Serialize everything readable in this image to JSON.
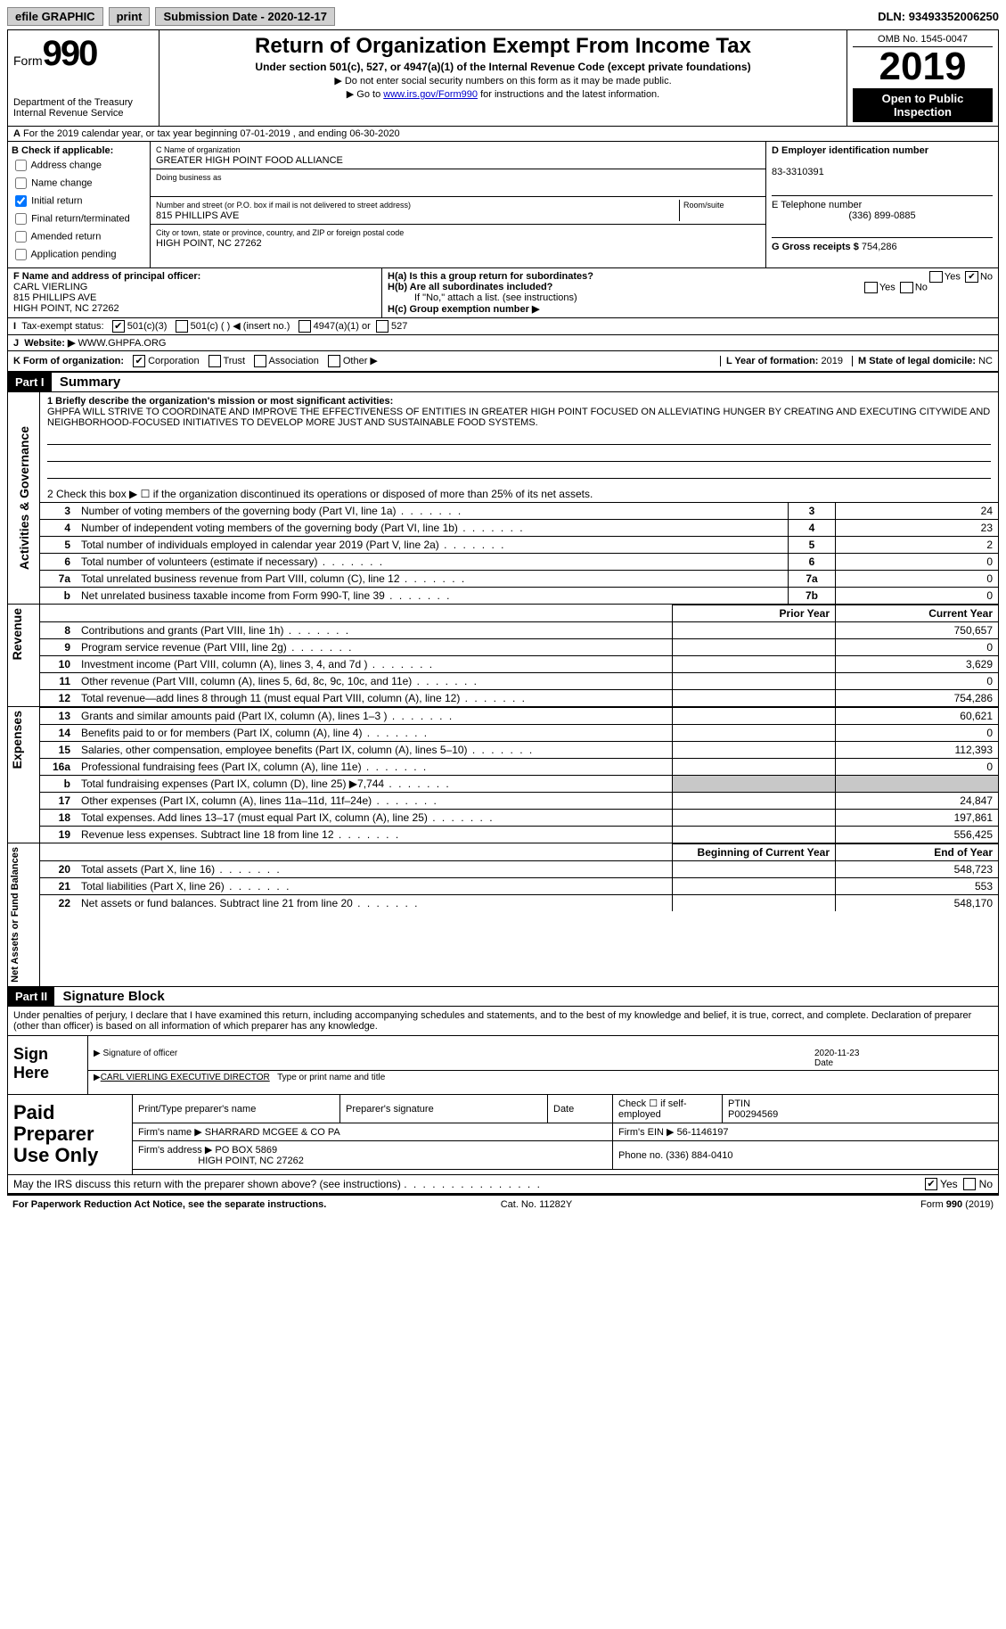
{
  "topbar": {
    "efile": "efile GRAPHIC",
    "print": "print",
    "subdate_label": "Submission Date - ",
    "subdate": "2020-12-17",
    "dln_label": "DLN: ",
    "dln": "93493352006250"
  },
  "header": {
    "form_prefix": "Form",
    "form_num": "990",
    "dept": "Department of the Treasury\nInternal Revenue Service",
    "title": "Return of Organization Exempt From Income Tax",
    "subtitle": "Under section 501(c), 527, or 4947(a)(1) of the Internal Revenue Code (except private foundations)",
    "hint1": "Do not enter social security numbers on this form as it may be made public.",
    "hint2_pre": "Go to ",
    "hint2_link": "www.irs.gov/Form990",
    "hint2_post": " for instructions and the latest information.",
    "omb": "OMB No. 1545-0047",
    "year": "2019",
    "openpub": "Open to Public Inspection"
  },
  "period": {
    "line": "For the 2019 calendar year, or tax year beginning 07-01-2019   , and ending 06-30-2020"
  },
  "boxB": {
    "label": "B Check if applicable:",
    "items": [
      "Address change",
      "Name change",
      "Initial return",
      "Final return/terminated",
      "Amended return",
      "Application pending"
    ],
    "checked": [
      false,
      false,
      true,
      false,
      false,
      false
    ]
  },
  "boxC": {
    "name_label": "C Name of organization",
    "name": "GREATER HIGH POINT FOOD ALLIANCE",
    "dba_label": "Doing business as",
    "dba": "",
    "addr_label": "Number and street (or P.O. box if mail is not delivered to street address)",
    "room_label": "Room/suite",
    "addr": "815 PHILLIPS AVE",
    "city_label": "City or town, state or province, country, and ZIP or foreign postal code",
    "city": "HIGH POINT, NC  27262"
  },
  "boxD": {
    "label": "D Employer identification number",
    "ein": "83-3310391",
    "tel_label": "E Telephone number",
    "tel": "(336) 899-0885",
    "gross_label": "G Gross receipts $",
    "gross": "754,286"
  },
  "boxF": {
    "label": "F Name and address of principal officer:",
    "name": "CARL VIERLING",
    "addr1": "815 PHILLIPS AVE",
    "addr2": "HIGH POINT, NC  27262"
  },
  "boxH": {
    "a_label": "H(a)  Is this a group return for subordinates?",
    "a_yes": false,
    "a_no": true,
    "b_label": "H(b)  Are all subordinates included?",
    "b_yes": false,
    "b_no": false,
    "b_hint": "If \"No,\" attach a list. (see instructions)",
    "c_label": "H(c)  Group exemption number ▶"
  },
  "taxexempt": {
    "label": "Tax-exempt status:",
    "c3": true,
    "c_other": "501(c) (  ) ◀ (insert no.)",
    "a4947": "4947(a)(1) or",
    "s527": "527"
  },
  "website": {
    "label": "Website: ▶",
    "val": "WWW.GHPFA.ORG"
  },
  "formorg": {
    "label": "K Form of organization:",
    "corp": true,
    "trust": false,
    "assoc": false,
    "other": false,
    "yr_label": "L Year of formation:",
    "yr": "2019",
    "dom_label": "M State of legal domicile:",
    "dom": "NC"
  },
  "part1": {
    "bar": "Part I",
    "title": "Summary",
    "q1_label": "1  Briefly describe the organization's mission or most significant activities:",
    "mission": "GHPFA WILL STRIVE TO COORDINATE AND IMPROVE THE EFFECTIVENESS OF ENTITIES IN GREATER HIGH POINT FOCUSED ON ALLEVIATING HUNGER BY CREATING AND EXECUTING CITYWIDE AND NEIGHBORHOOD-FOCUSED INITIATIVES TO DEVELOP MORE JUST AND SUSTAINABLE FOOD SYSTEMS.",
    "q2": "2   Check this box ▶ ☐  if the organization discontinued its operations or disposed of more than 25% of its net assets.",
    "rows_gov": [
      {
        "n": "3",
        "t": "Number of voting members of the governing body (Part VI, line 1a)",
        "box": "3",
        "cy": "24"
      },
      {
        "n": "4",
        "t": "Number of independent voting members of the governing body (Part VI, line 1b)",
        "box": "4",
        "cy": "23"
      },
      {
        "n": "5",
        "t": "Total number of individuals employed in calendar year 2019 (Part V, line 2a)",
        "box": "5",
        "cy": "2"
      },
      {
        "n": "6",
        "t": "Total number of volunteers (estimate if necessary)",
        "box": "6",
        "cy": "0"
      },
      {
        "n": "7a",
        "t": "Total unrelated business revenue from Part VIII, column (C), line 12",
        "box": "7a",
        "cy": "0"
      },
      {
        "n": "b",
        "t": "Net unrelated business taxable income from Form 990-T, line 39",
        "box": "7b",
        "cy": "0"
      }
    ],
    "colhdr_py": "Prior Year",
    "colhdr_cy": "Current Year",
    "rows_rev": [
      {
        "n": "8",
        "t": "Contributions and grants (Part VIII, line 1h)",
        "py": "",
        "cy": "750,657"
      },
      {
        "n": "9",
        "t": "Program service revenue (Part VIII, line 2g)",
        "py": "",
        "cy": "0"
      },
      {
        "n": "10",
        "t": "Investment income (Part VIII, column (A), lines 3, 4, and 7d )",
        "py": "",
        "cy": "3,629"
      },
      {
        "n": "11",
        "t": "Other revenue (Part VIII, column (A), lines 5, 6d, 8c, 9c, 10c, and 11e)",
        "py": "",
        "cy": "0"
      },
      {
        "n": "12",
        "t": "Total revenue—add lines 8 through 11 (must equal Part VIII, column (A), line 12)",
        "py": "",
        "cy": "754,286"
      }
    ],
    "rows_exp": [
      {
        "n": "13",
        "t": "Grants and similar amounts paid (Part IX, column (A), lines 1–3 )",
        "py": "",
        "cy": "60,621"
      },
      {
        "n": "14",
        "t": "Benefits paid to or for members (Part IX, column (A), line 4)",
        "py": "",
        "cy": "0"
      },
      {
        "n": "15",
        "t": "Salaries, other compensation, employee benefits (Part IX, column (A), lines 5–10)",
        "py": "",
        "cy": "112,393"
      },
      {
        "n": "16a",
        "t": "Professional fundraising fees (Part IX, column (A), line 11e)",
        "py": "",
        "cy": "0"
      },
      {
        "n": "b",
        "t": "Total fundraising expenses (Part IX, column (D), line 25) ▶7,744",
        "py": "gray",
        "cy": "gray"
      },
      {
        "n": "17",
        "t": "Other expenses (Part IX, column (A), lines 11a–11d, 11f–24e)",
        "py": "",
        "cy": "24,847"
      },
      {
        "n": "18",
        "t": "Total expenses. Add lines 13–17 (must equal Part IX, column (A), line 25)",
        "py": "",
        "cy": "197,861"
      },
      {
        "n": "19",
        "t": "Revenue less expenses. Subtract line 18 from line 12",
        "py": "",
        "cy": "556,425"
      }
    ],
    "colhdr_by": "Beginning of Current Year",
    "colhdr_ey": "End of Year",
    "rows_net": [
      {
        "n": "20",
        "t": "Total assets (Part X, line 16)",
        "py": "",
        "cy": "548,723"
      },
      {
        "n": "21",
        "t": "Total liabilities (Part X, line 26)",
        "py": "",
        "cy": "553"
      },
      {
        "n": "22",
        "t": "Net assets or fund balances. Subtract line 21 from line 20",
        "py": "",
        "cy": "548,170"
      }
    ],
    "side_gov": "Activities & Governance",
    "side_rev": "Revenue",
    "side_exp": "Expenses",
    "side_net": "Net Assets or Fund Balances"
  },
  "part2": {
    "bar": "Part II",
    "title": "Signature Block",
    "decl": "Under penalties of perjury, I declare that I have examined this return, including accompanying schedules and statements, and to the best of my knowledge and belief, it is true, correct, and complete. Declaration of preparer (other than officer) is based on all information of which preparer has any knowledge.",
    "sign_here": "Sign Here",
    "sig_label": "Signature of officer",
    "date_label": "Date",
    "sig_date": "2020-11-23",
    "name_title": "CARL VIERLING EXECUTIVE DIRECTOR",
    "name_title_label": "Type or print name and title",
    "paid_label": "Paid Preparer Use Only",
    "prep_name_label": "Print/Type preparer's name",
    "prep_sig_label": "Preparer's signature",
    "prep_date_label": "Date",
    "self_emp_label": "Check ☐ if self-employed",
    "ptin_label": "PTIN",
    "ptin": "P00294569",
    "firm_name_label": "Firm's name   ▶",
    "firm_name": "SHARRARD MCGEE & CO PA",
    "firm_ein_label": "Firm's EIN ▶",
    "firm_ein": "56-1146197",
    "firm_addr_label": "Firm's address ▶",
    "firm_addr1": "PO BOX 5869",
    "firm_addr2": "HIGH POINT, NC  27262",
    "phone_label": "Phone no.",
    "phone": "(336) 884-0410",
    "discuss": "May the IRS discuss this return with the preparer shown above? (see instructions)",
    "discuss_yes": true,
    "paperwork": "For Paperwork Reduction Act Notice, see the separate instructions.",
    "catno": "Cat. No. 11282Y",
    "formfoot": "Form 990 (2019)"
  }
}
